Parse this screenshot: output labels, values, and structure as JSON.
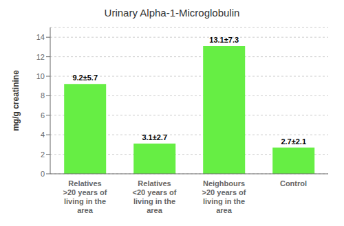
{
  "chart_data": {
    "type": "bar",
    "title": "Urinary Alpha-1-Microglobulin",
    "ylabel": "mg/g creatinine",
    "categories": [
      "Relatives\n>20 years of\nliving in the\narea",
      "Relatives\n<20 years of\nliving in the\narea",
      "Neighbours\n>20 years of\nliving in the\narea",
      "Control"
    ],
    "values": [
      9.2,
      3.1,
      13.1,
      2.7
    ],
    "value_labels": [
      "9.2±5.7",
      "3.1±2.7",
      "13.1±7.3",
      "2.7±2.1"
    ],
    "color": "#66EE44",
    "ylim": [
      0,
      15
    ],
    "yticks": [
      0,
      2,
      4,
      6,
      8,
      10,
      12,
      14
    ],
    "grid": true
  }
}
